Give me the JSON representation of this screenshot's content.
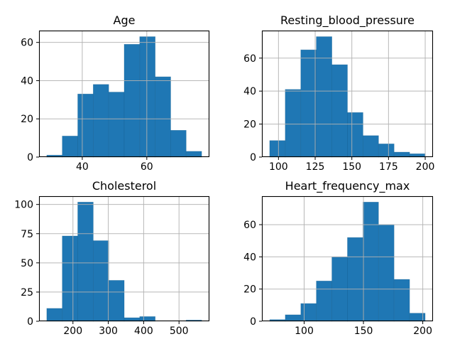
{
  "figure": {
    "background": "#ffffff",
    "bar_color": "#1f77b4",
    "bar_edge_color": "#15608f",
    "grid_color": "#b0b0b0",
    "axis_color": "#000000",
    "text_color": "#000000"
  },
  "chart_data": [
    {
      "type": "bar",
      "subtype": "histogram",
      "title": "Age",
      "bin_start": 29,
      "bin_width": 4.8,
      "counts": [
        1,
        11,
        33,
        38,
        34,
        59,
        63,
        42,
        14,
        3
      ],
      "xlim": [
        26.6,
        79.4
      ],
      "ylim": [
        0,
        66.2
      ],
      "xticks": [
        40,
        60
      ],
      "yticks": [
        0,
        20,
        40,
        60
      ],
      "grid": true,
      "legend": false
    },
    {
      "type": "bar",
      "subtype": "histogram",
      "title": "Resting_blood_pressure",
      "bin_start": 94,
      "bin_width": 10.6,
      "counts": [
        10,
        41,
        65,
        73,
        56,
        27,
        13,
        8,
        3,
        2
      ],
      "xlim": [
        88.7,
        205.3
      ],
      "ylim": [
        0,
        76.7
      ],
      "xticks": [
        100,
        125,
        150,
        175,
        200
      ],
      "yticks": [
        0,
        20,
        40,
        60
      ],
      "grid": true,
      "legend": false
    },
    {
      "type": "bar",
      "subtype": "histogram",
      "title": "Cholesterol",
      "bin_start": 126,
      "bin_width": 43.8,
      "counts": [
        11,
        73,
        102,
        69,
        35,
        3,
        4,
        0,
        0,
        1
      ],
      "xlim": [
        104.1,
        585.9
      ],
      "ylim": [
        0,
        107.1
      ],
      "xticks": [
        200,
        300,
        400,
        500
      ],
      "yticks": [
        0,
        25,
        50,
        75,
        100
      ],
      "grid": true,
      "legend": false
    },
    {
      "type": "bar",
      "subtype": "histogram",
      "title": "Heart_frequency_max",
      "bin_start": 71,
      "bin_width": 13.1,
      "counts": [
        1,
        4,
        11,
        25,
        40,
        52,
        74,
        60,
        26,
        5
      ],
      "xlim": [
        64.4,
        208.6
      ],
      "ylim": [
        0,
        77.7
      ],
      "xticks": [
        100,
        150,
        200
      ],
      "yticks": [
        0,
        20,
        40,
        60
      ],
      "grid": true,
      "legend": false
    }
  ]
}
